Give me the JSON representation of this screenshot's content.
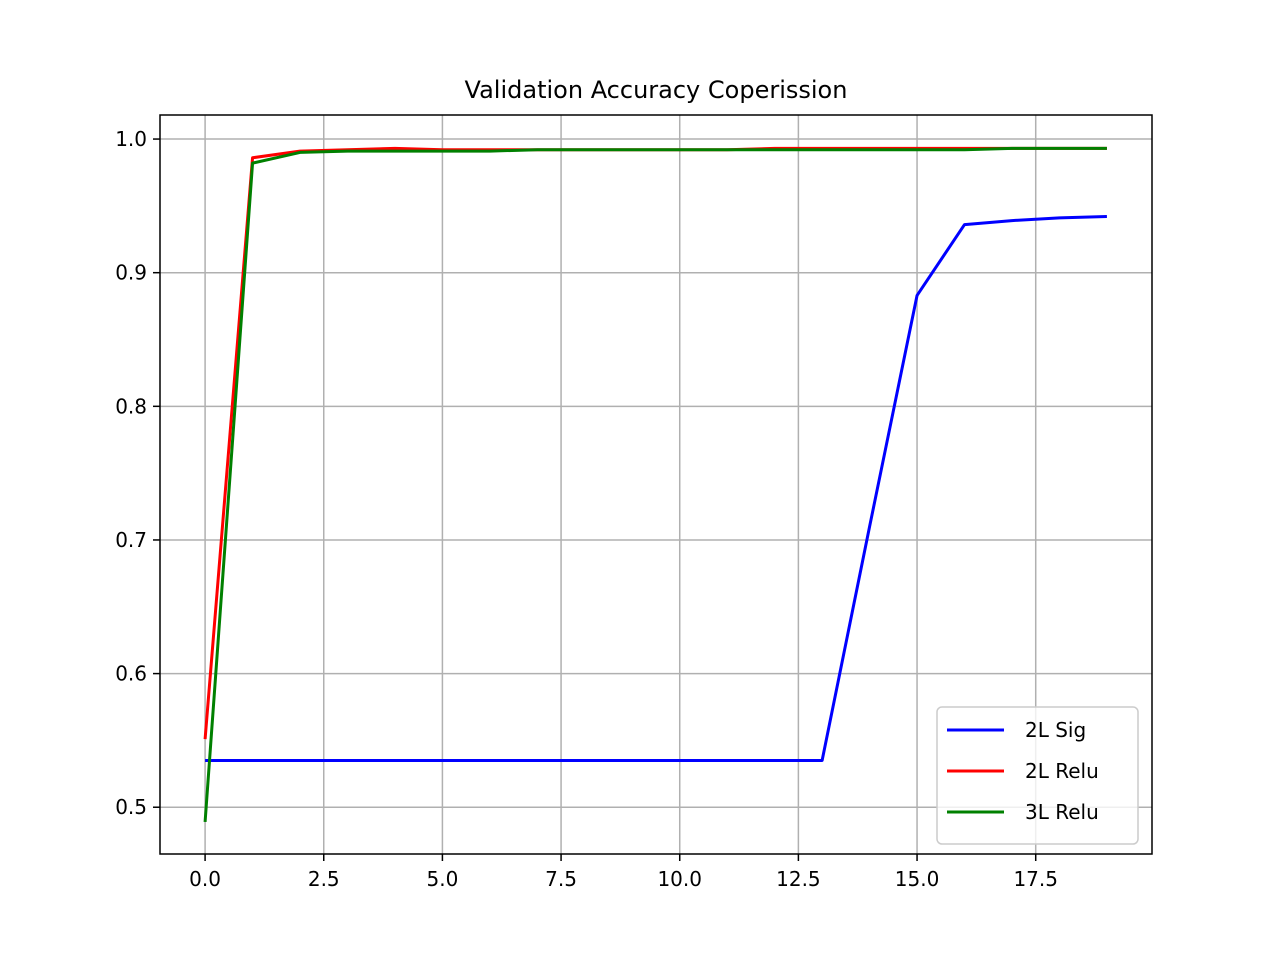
{
  "chart_data": {
    "type": "line",
    "title": "Validation Accuracy Coperission",
    "xlabel": "",
    "ylabel": "",
    "xlim": [
      -0.95,
      19.95
    ],
    "ylim": [
      0.465,
      1.018
    ],
    "grid": true,
    "legend_position": "lower-right",
    "x_ticks": [
      0.0,
      2.5,
      5.0,
      7.5,
      10.0,
      12.5,
      15.0,
      17.5
    ],
    "x_tick_labels": [
      "0.0",
      "2.5",
      "5.0",
      "7.5",
      "10.0",
      "12.5",
      "15.0",
      "17.5"
    ],
    "y_ticks": [
      0.5,
      0.6,
      0.7,
      0.8,
      0.9,
      1.0
    ],
    "y_tick_labels": [
      "0.5",
      "0.6",
      "0.7",
      "0.8",
      "0.9",
      "1.0"
    ],
    "x": [
      0,
      1,
      2,
      3,
      4,
      5,
      6,
      7,
      8,
      9,
      10,
      11,
      12,
      13,
      14,
      15,
      16,
      17,
      18,
      19
    ],
    "series": [
      {
        "name": "2L Sig",
        "color": "#0000ff",
        "values": [
          0.535,
          0.535,
          0.535,
          0.535,
          0.535,
          0.535,
          0.535,
          0.535,
          0.535,
          0.535,
          0.535,
          0.535,
          0.535,
          0.535,
          0.71,
          0.883,
          0.936,
          0.939,
          0.941,
          0.942
        ]
      },
      {
        "name": "2L Relu",
        "color": "#ff0000",
        "values": [
          0.551,
          0.986,
          0.991,
          0.992,
          0.993,
          0.992,
          0.992,
          0.992,
          0.992,
          0.992,
          0.992,
          0.992,
          0.993,
          0.993,
          0.993,
          0.993,
          0.993,
          0.993,
          0.993,
          0.993
        ]
      },
      {
        "name": "3L Relu",
        "color": "#008000",
        "values": [
          0.489,
          0.982,
          0.99,
          0.991,
          0.991,
          0.991,
          0.991,
          0.992,
          0.992,
          0.992,
          0.992,
          0.992,
          0.992,
          0.992,
          0.992,
          0.992,
          0.992,
          0.993,
          0.993,
          0.993
        ]
      }
    ]
  }
}
